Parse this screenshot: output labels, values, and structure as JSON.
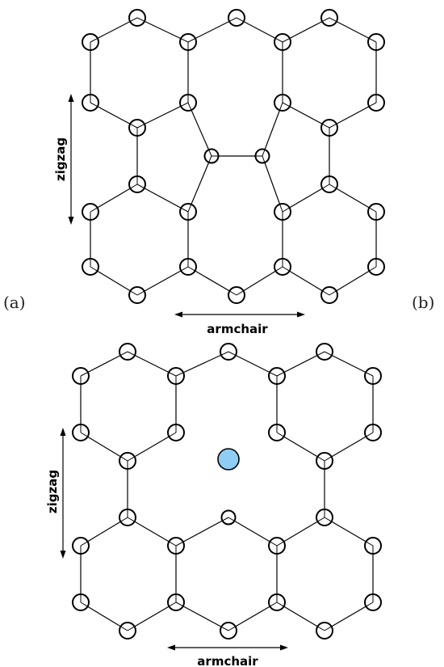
{
  "panels": [
    {
      "id": "a",
      "label": "(a)",
      "direction_labels": {
        "horizontal": "armchair",
        "vertical": "zigzag"
      },
      "defect_atoms": [
        {
          "color": "#e8141b"
        },
        {
          "color": "#e8141b"
        }
      ]
    },
    {
      "id": "b",
      "label": "(b)",
      "direction_labels": {
        "horizontal": "armchair",
        "vertical": "zigzag"
      },
      "defect_atoms": [
        {
          "color": "#e8141b"
        }
      ],
      "vacancy_marker": {
        "color": "#8fcdf5"
      }
    }
  ],
  "colors": {
    "atom_fill": "#ffffff",
    "bond": "#000000"
  }
}
